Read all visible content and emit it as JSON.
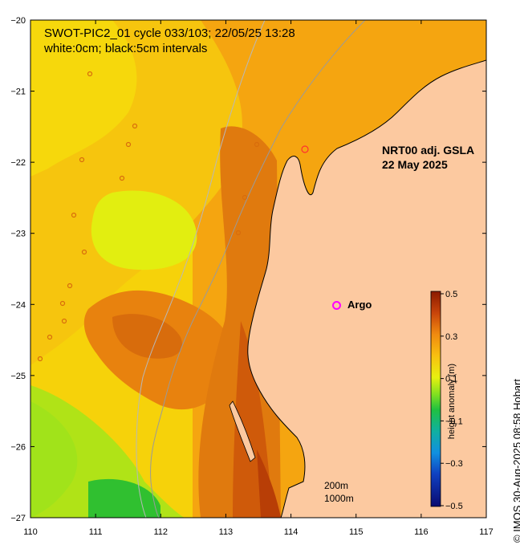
{
  "title_line1": "SWOT-PIC2_01 cycle 033/103; 22/05/25 13:28",
  "title_line2": "white:0cm; black:5cm intervals",
  "product_line1": "NRT00 adj. GSLA",
  "product_line2": "22 May 2025",
  "argo_label": "Argo",
  "scale_label_1": "200m",
  "scale_label_2": "1000m",
  "copyright": "© IMOS 30-Aug-2025 08:58 Hobart",
  "colorbar": {
    "label": "height anomaly (m)",
    "ticks": [
      "0.5",
      "0.3",
      "0.1",
      "-0.1",
      "-0.3",
      "-0.5"
    ],
    "min": -0.5,
    "max": 0.5
  },
  "map": {
    "lon_range": [
      110,
      117
    ],
    "lat_range": [
      -27,
      -20
    ],
    "x_ticks": [
      "110",
      "111",
      "112",
      "113",
      "114",
      "115",
      "116",
      "117"
    ],
    "y_ticks": [
      "-20",
      "-21",
      "-22",
      "-23",
      "-24",
      "-25",
      "-26",
      "-27"
    ],
    "land_color": "#fcc9a0",
    "argo_color": "#ff00ff"
  }
}
